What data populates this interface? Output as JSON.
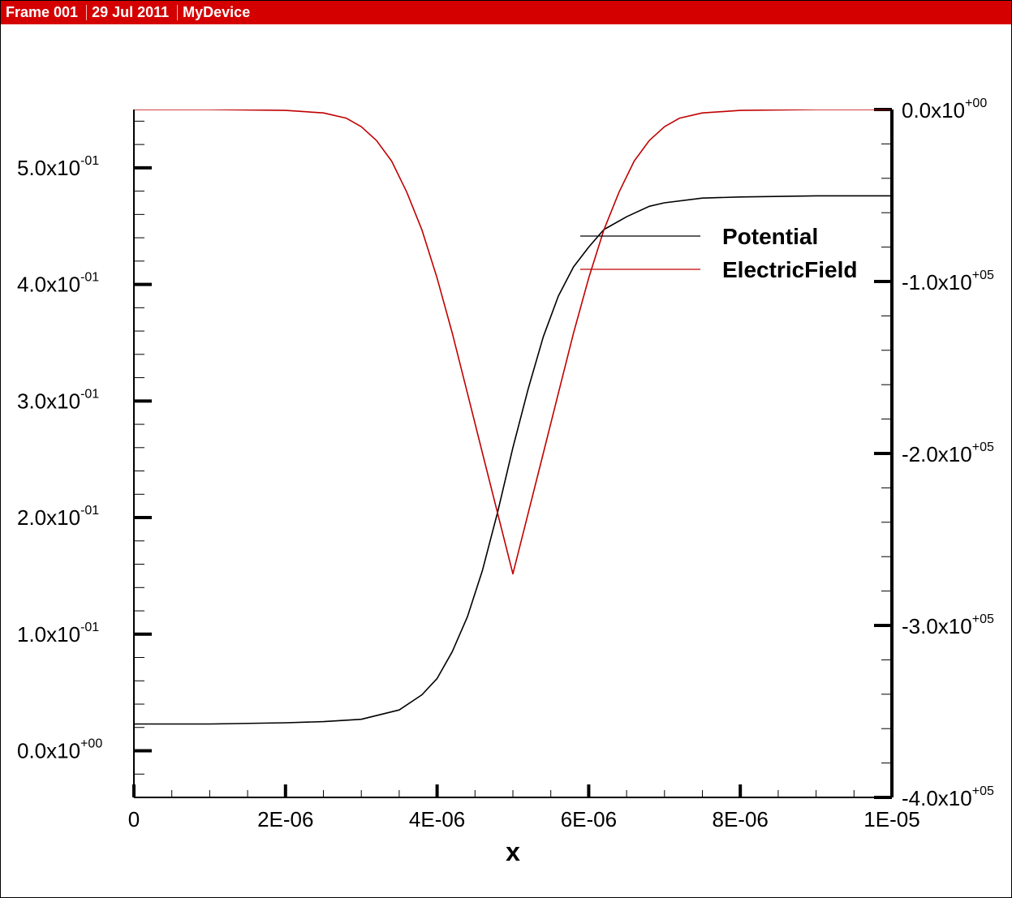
{
  "header": {
    "frame": "Frame 001",
    "date": "29 Jul 2011",
    "device": "MyDevice",
    "background": "#d40000"
  },
  "chart_data": {
    "type": "line",
    "xlabel": "x",
    "xlim": [
      0,
      1e-05
    ],
    "x_ticks": [
      {
        "value": 0,
        "label": "0"
      },
      {
        "value": 2e-06,
        "label": "2E-06"
      },
      {
        "value": 4e-06,
        "label": "4E-06"
      },
      {
        "value": 6e-06,
        "label": "6E-06"
      },
      {
        "value": 8e-06,
        "label": "8E-06"
      },
      {
        "value": 1e-05,
        "label": "1E-05"
      }
    ],
    "left_axis": {
      "ylim": [
        -0.04,
        0.55
      ],
      "ticks": [
        {
          "value": 0.0,
          "mantissa": "0.0x10",
          "exponent": "+00"
        },
        {
          "value": 0.1,
          "mantissa": "1.0x10",
          "exponent": "-01"
        },
        {
          "value": 0.2,
          "mantissa": "2.0x10",
          "exponent": "-01"
        },
        {
          "value": 0.3,
          "mantissa": "3.0x10",
          "exponent": "-01"
        },
        {
          "value": 0.4,
          "mantissa": "4.0x10",
          "exponent": "-01"
        },
        {
          "value": 0.5,
          "mantissa": "5.0x10",
          "exponent": "-01"
        }
      ]
    },
    "right_axis": {
      "ylim": [
        -4.0,
        0.0
      ],
      "ticks": [
        {
          "value": 0.0,
          "mantissa": "0.0x10",
          "exponent": "+00"
        },
        {
          "value": -1.0,
          "mantissa": "-1.0x10",
          "exponent": "+05"
        },
        {
          "value": -2.0,
          "mantissa": "-2.0x10",
          "exponent": "+05"
        },
        {
          "value": -3.0,
          "mantissa": "-3.0x10",
          "exponent": "+05"
        },
        {
          "value": -4.0,
          "mantissa": "-4.0x10",
          "exponent": "+05"
        }
      ]
    },
    "legend_position": "top-right",
    "series": [
      {
        "name": "Potential",
        "axis": "left",
        "color": "#000000",
        "x": [
          0,
          1e-06,
          2e-06,
          2.5e-06,
          3e-06,
          3.5e-06,
          3.8e-06,
          4e-06,
          4.2e-06,
          4.4e-06,
          4.6e-06,
          4.8e-06,
          5e-06,
          5.2e-06,
          5.4e-06,
          5.6e-06,
          5.8e-06,
          6e-06,
          6.2e-06,
          6.5e-06,
          6.8e-06,
          7e-06,
          7.5e-06,
          8e-06,
          9e-06,
          1e-05
        ],
        "y": [
          0.023,
          0.023,
          0.024,
          0.025,
          0.027,
          0.035,
          0.048,
          0.062,
          0.085,
          0.115,
          0.155,
          0.205,
          0.26,
          0.31,
          0.355,
          0.39,
          0.415,
          0.432,
          0.447,
          0.458,
          0.467,
          0.47,
          0.474,
          0.475,
          0.476,
          0.476
        ]
      },
      {
        "name": "ElectricField",
        "axis": "right",
        "color": "#c00000",
        "x": [
          0,
          1e-06,
          2e-06,
          2.5e-06,
          2.8e-06,
          3e-06,
          3.2e-06,
          3.4e-06,
          3.6e-06,
          3.8e-06,
          4e-06,
          4.2e-06,
          4.4e-06,
          4.6e-06,
          4.8e-06,
          5e-06,
          5.2e-06,
          5.4e-06,
          5.6e-06,
          5.8e-06,
          6e-06,
          6.2e-06,
          6.4e-06,
          6.6e-06,
          6.8e-06,
          7e-06,
          7.2e-06,
          7.5e-06,
          8e-06,
          9e-06,
          1e-05
        ],
        "y": [
          0.0,
          0.0,
          -0.005,
          -0.02,
          -0.05,
          -0.1,
          -0.18,
          -0.3,
          -0.48,
          -0.7,
          -0.98,
          -1.3,
          -1.65,
          -2.0,
          -2.35,
          -2.7,
          -2.35,
          -2.0,
          -1.65,
          -1.3,
          -0.98,
          -0.7,
          -0.48,
          -0.3,
          -0.18,
          -0.1,
          -0.05,
          -0.02,
          -0.005,
          0.0,
          0.0
        ]
      }
    ]
  }
}
